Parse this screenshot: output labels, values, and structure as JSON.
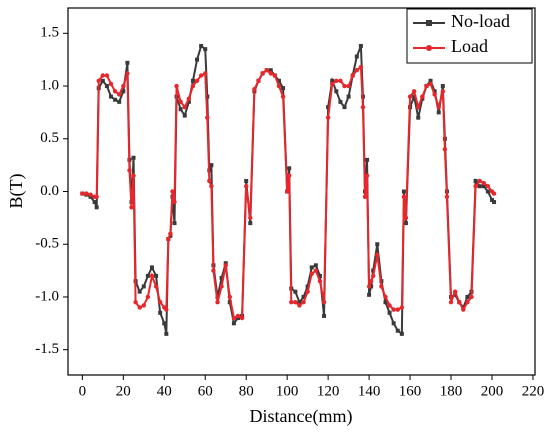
{
  "chart_data": {
    "type": "line",
    "xlabel": "Distance(mm)",
    "ylabel": "B(T)",
    "x": [
      0,
      2,
      4,
      6,
      7,
      8,
      10,
      12,
      14,
      16,
      18,
      20,
      22,
      23,
      24,
      25,
      26,
      28,
      30,
      32,
      34,
      36,
      38,
      40,
      41,
      42,
      43,
      44,
      45,
      46,
      48,
      50,
      52,
      54,
      56,
      58,
      60,
      61,
      62,
      63,
      64,
      66,
      68,
      70,
      72,
      74,
      76,
      78,
      80,
      82,
      84,
      86,
      88,
      90,
      92,
      94,
      96,
      98,
      100,
      101,
      102,
      104,
      106,
      108,
      110,
      112,
      114,
      116,
      118,
      120,
      122,
      124,
      126,
      128,
      130,
      132,
      134,
      136,
      137,
      138,
      139,
      140,
      141,
      142,
      144,
      146,
      148,
      150,
      152,
      154,
      156,
      157,
      158,
      160,
      162,
      164,
      166,
      168,
      170,
      172,
      174,
      176,
      177,
      178,
      180,
      182,
      184,
      186,
      188,
      190,
      192,
      194,
      196,
      198,
      200,
      201
    ],
    "series": [
      {
        "name": "No-load",
        "color": "#3a3a3a",
        "marker": "square",
        "values": [
          -0.02,
          -0.03,
          -0.05,
          -0.1,
          -0.15,
          0.98,
          1.05,
          1.0,
          0.9,
          0.87,
          0.85,
          0.95,
          1.22,
          0.3,
          -0.1,
          0.32,
          -0.85,
          -0.95,
          -0.9,
          -0.8,
          -0.72,
          -0.8,
          -1.15,
          -1.25,
          -1.35,
          -0.45,
          -0.42,
          -0.05,
          -0.3,
          0.9,
          0.78,
          0.72,
          0.85,
          1.05,
          1.25,
          1.38,
          1.35,
          0.9,
          0.2,
          0.25,
          -0.7,
          -1.0,
          -0.82,
          -0.68,
          -1.05,
          -1.25,
          -1.2,
          -1.18,
          0.1,
          -0.3,
          0.95,
          1.05,
          1.12,
          1.15,
          1.15,
          1.1,
          1.05,
          0.98,
          0.0,
          0.22,
          -0.92,
          -0.95,
          -1.05,
          -1.0,
          -0.9,
          -0.72,
          -0.7,
          -0.8,
          -1.18,
          0.8,
          1.05,
          0.95,
          0.85,
          0.8,
          0.9,
          1.1,
          1.28,
          1.38,
          0.9,
          0.0,
          0.3,
          -0.98,
          -0.9,
          -0.75,
          -0.5,
          -0.85,
          -1.05,
          -1.15,
          -1.25,
          -1.32,
          -1.35,
          0.0,
          -0.3,
          0.8,
          0.9,
          0.7,
          0.88,
          1.0,
          1.05,
          0.95,
          0.75,
          1.0,
          0.5,
          0.0,
          -1.0,
          -0.98,
          -1.05,
          -1.1,
          -1.0,
          -0.95,
          0.1,
          0.05,
          0.05,
          0.0,
          -0.08,
          -0.1
        ]
      },
      {
        "name": "Load",
        "color": "#e8262b",
        "marker": "circle",
        "values": [
          -0.02,
          -0.02,
          -0.03,
          -0.05,
          -0.05,
          1.05,
          1.1,
          1.1,
          1.02,
          0.95,
          0.92,
          1.0,
          1.12,
          0.2,
          -0.15,
          0.15,
          -1.05,
          -1.1,
          -1.08,
          -1.0,
          -0.8,
          -0.9,
          -1.05,
          -1.1,
          -1.12,
          -0.45,
          -0.4,
          0.0,
          -0.1,
          1.0,
          0.85,
          0.8,
          0.88,
          1.0,
          1.05,
          1.1,
          1.12,
          0.7,
          0.1,
          0.05,
          -0.75,
          -1.05,
          -0.9,
          -0.7,
          -1.0,
          -1.2,
          -1.18,
          -1.2,
          0.05,
          -0.25,
          0.97,
          1.05,
          1.12,
          1.15,
          1.12,
          1.1,
          1.0,
          0.9,
          0.0,
          0.15,
          -1.05,
          -1.05,
          -1.08,
          -1.05,
          -0.95,
          -0.78,
          -0.75,
          -0.85,
          -1.05,
          0.7,
          1.02,
          1.05,
          1.05,
          1.0,
          1.0,
          1.1,
          1.15,
          1.18,
          0.8,
          -0.05,
          0.15,
          -0.9,
          -0.85,
          -0.8,
          -0.6,
          -0.9,
          -1.0,
          -1.08,
          -1.12,
          -1.12,
          -1.1,
          -0.05,
          -0.25,
          0.9,
          0.95,
          0.8,
          0.9,
          1.0,
          1.02,
          0.92,
          0.8,
          0.95,
          0.4,
          -0.05,
          -1.05,
          -0.95,
          -1.05,
          -1.12,
          -1.05,
          -1.0,
          0.05,
          0.1,
          0.08,
          0.05,
          0.0,
          -0.02
        ]
      }
    ],
    "xlim": [
      -7,
      221
    ],
    "ylim": [
      -1.74,
      1.74
    ],
    "xticks": [
      0,
      20,
      40,
      60,
      80,
      100,
      120,
      140,
      160,
      180,
      200,
      220
    ],
    "yticks": [
      -1.5,
      {
        "value": -1.0,
        "label": "-1.0"
      },
      -0.5,
      {
        "value": 0,
        "label": "0.0"
      },
      0.5,
      {
        "value": 1.0,
        "label": "1.0"
      },
      1.5
    ],
    "legend": "upper right"
  }
}
